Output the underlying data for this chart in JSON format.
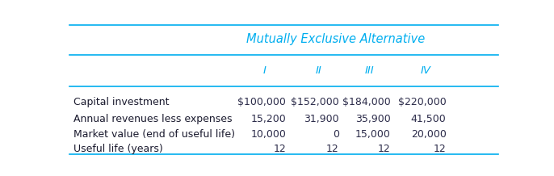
{
  "title": "Mutually Exclusive Alternative",
  "title_color": "#00AEEF",
  "col_headers": [
    "I",
    "II",
    "III",
    "IV"
  ],
  "col_header_color": "#00AEEF",
  "row_labels": [
    "Capital investment",
    "Annual revenues less expenses",
    "Market value (end of useful life)",
    "Useful life (years)"
  ],
  "table_data": [
    [
      "$100,000",
      "$152,000",
      "$184,000",
      "$220,000"
    ],
    [
      "15,200",
      "31,900",
      "35,900",
      "41,500"
    ],
    [
      "10,000",
      "0",
      "15,000",
      "20,000"
    ],
    [
      "12",
      "12",
      "12",
      "12"
    ]
  ],
  "text_color": "#1a1a2e",
  "data_color": "#2c2c4a",
  "background_color": "#ffffff",
  "line_color": "#00AEEF",
  "font_size": 9.0
}
